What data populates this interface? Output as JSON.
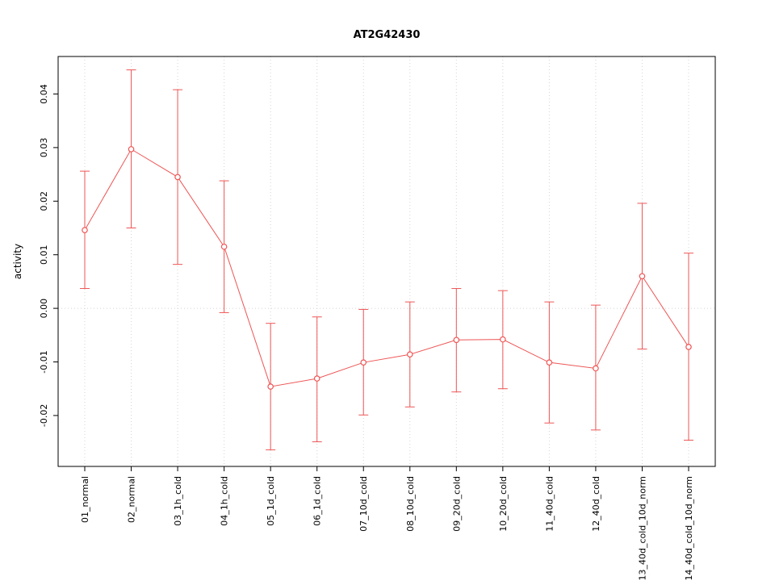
{
  "chart": {
    "title": "AT2G42430",
    "ylabel": "activity"
  },
  "chart_data": {
    "type": "line",
    "title": "AT2G42430",
    "xlabel": "",
    "ylabel": "activity",
    "categories": [
      "01_normal",
      "02_normal",
      "03_1h_cold",
      "04_1h_cold",
      "05_1d_cold",
      "06_1d_cold",
      "07_10d_cold",
      "08_10d_cold",
      "09_20d_cold",
      "10_20d_cold",
      "11_40d_cold",
      "12_40d_cold",
      "13_40d_cold_10d_norm",
      "14_40d_cold_10d_norm"
    ],
    "series": [
      {
        "name": "activity",
        "values": [
          0.0146,
          0.0297,
          0.0245,
          0.0115,
          -0.0146,
          -0.0131,
          -0.0101,
          -0.0086,
          -0.0059,
          -0.0058,
          -0.0101,
          -0.0112,
          0.006,
          -0.0072
        ],
        "upper": [
          0.0256,
          0.0445,
          0.0408,
          0.0238,
          -0.0028,
          -0.0016,
          -0.0002,
          0.0012,
          0.0037,
          0.0033,
          0.0012,
          0.0006,
          0.0196,
          0.0103
        ],
        "lower": [
          0.0037,
          0.015,
          0.0082,
          -0.0008,
          -0.0264,
          -0.0249,
          -0.0199,
          -0.0184,
          -0.0156,
          -0.015,
          -0.0214,
          -0.0227,
          -0.0076,
          -0.0246
        ]
      }
    ],
    "yticks": [
      -0.02,
      -0.01,
      0.0,
      0.01,
      0.02,
      0.03,
      0.04
    ],
    "ylim": [
      -0.0295,
      0.047
    ],
    "legend": "none",
    "grid": {
      "vertical": "dotted at each category",
      "horizontal": "dotted at zero only"
    },
    "zero_line": 0,
    "colors": {
      "series": "#ee5555",
      "grid": "#d4d4d4",
      "axis": "#000000",
      "background": "#ffffff"
    }
  }
}
